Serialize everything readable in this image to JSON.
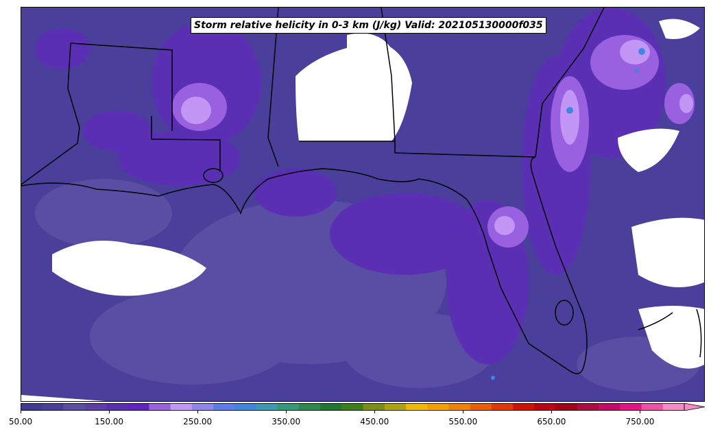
{
  "title": "Storm relative helicity in 0-3 km (J/kg) Valid: 202105130000f035",
  "colorbar": {
    "min": 50,
    "max": 800,
    "extend": "max",
    "ticks": [
      "50.00",
      "150.00",
      "250.00",
      "350.00",
      "450.00",
      "550.00",
      "650.00",
      "750.00"
    ],
    "tick_values": [
      50,
      150,
      250,
      350,
      450,
      550,
      650,
      750
    ],
    "colors": [
      "#3f3a96",
      "#4a3f9a",
      "#5a4ea4",
      "#5c3ea8",
      "#5a2fb4",
      "#6123c2",
      "#9960e0",
      "#c396f6",
      "#8d86ee",
      "#5b7cf0",
      "#3f86e0",
      "#3a9ab2",
      "#339a78",
      "#2a8a4a",
      "#1f7a2e",
      "#3d7f18",
      "#7d8c12",
      "#b0a20a",
      "#f0b800",
      "#f6a000",
      "#f48000",
      "#ee5c00",
      "#e43800",
      "#d41000",
      "#c00010",
      "#a80018",
      "#b00a40",
      "#c8086a",
      "#e8108a",
      "#f050a8",
      "#f68ac8"
    ]
  },
  "field_colors": {
    "background": "#4a3f9a",
    "low": "#5a4ea4",
    "mid": "#5a2fb4",
    "high": "#9960e0",
    "peak": "#c396f6",
    "extreme": "#3f86e0",
    "missing": "#ffffff",
    "coast": "#000000"
  },
  "icons": [
    "storm-relative-helicity-map"
  ]
}
